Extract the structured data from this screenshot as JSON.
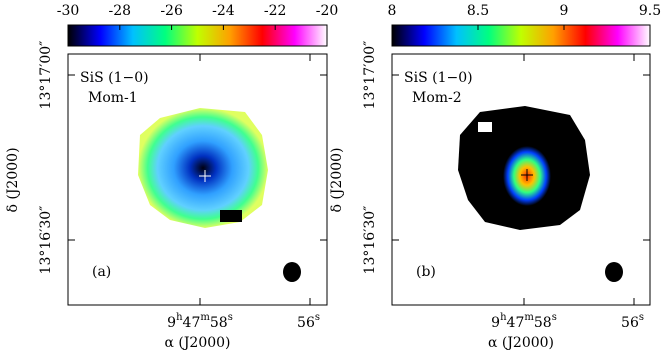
{
  "chart_data": [
    {
      "type": "image",
      "title": "SiS (1−0)",
      "subtitle": "Mom-1",
      "panel_label": "(a)",
      "colorbar_lim": [
        -30,
        -20
      ],
      "colorbar_ticks": [
        -30,
        -28,
        -26,
        -24,
        -22,
        -20
      ],
      "colormap": [
        "#000000",
        "#0000ff",
        "#00c0ff",
        "#00ff80",
        "#c0ff00",
        "#ffa000",
        "#ff0000",
        "#ff00ff",
        "#ffffff"
      ],
      "xlabel": "α (J2000)",
      "ylabel": "δ (J2000)",
      "xticks": [
        "9h47m58s",
        "56s"
      ],
      "yticks": [
        "13°17′00″",
        "13°16′30″"
      ]
    },
    {
      "type": "image",
      "title": "SiS (1−0)",
      "subtitle": "Mom-2",
      "panel_label": "(b)",
      "colorbar_lim": [
        8,
        9.5
      ],
      "colorbar_ticks": [
        8,
        8.5,
        9,
        9.5
      ],
      "colormap": [
        "#000000",
        "#0000ff",
        "#00c0ff",
        "#00ff80",
        "#c0ff00",
        "#ffa000",
        "#ff0000",
        "#ff00ff",
        "#ffffff"
      ],
      "xlabel": "α (J2000)",
      "ylabel": "δ (J2000)",
      "xticks": [
        "9h47m58s",
        "56s"
      ],
      "yticks": [
        "13°17′00″",
        "13°16′30″"
      ]
    }
  ]
}
